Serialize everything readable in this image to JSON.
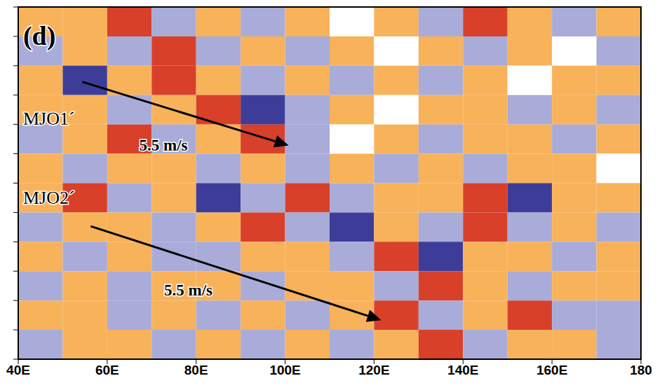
{
  "chart_data": {
    "type": "heatmap",
    "tick_labels": "x",
    "xlim": [
      40,
      180
    ],
    "xticks": [
      {
        "value": 40,
        "label": "40E"
      },
      {
        "value": 60,
        "label": "60E"
      },
      {
        "value": 80,
        "label": "80E"
      },
      {
        "value": 100,
        "label": "100E"
      },
      {
        "value": 120,
        "label": "120E"
      },
      {
        "value": 140,
        "label": "140E"
      },
      {
        "value": 160,
        "label": "160E"
      },
      180
    ],
    "ylim": [
      0,
      12
    ],
    "yticks": [
      0,
      1,
      2,
      3,
      4,
      5,
      6,
      7,
      8,
      9,
      10,
      11,
      12
    ],
    "x_edges": [
      40,
      50,
      60,
      70,
      80,
      90,
      100,
      110,
      120,
      130,
      140,
      150,
      160,
      170,
      180
    ],
    "y_edges": [
      12,
      11,
      10,
      9,
      8,
      7,
      6,
      5,
      4,
      3,
      2,
      1,
      0
    ],
    "levels": [
      -2,
      -1,
      0,
      1,
      2
    ],
    "colors": [
      "#3d3d99",
      "#a9acd9",
      "#ffffff",
      "#f8b25a",
      "#d8402a"
    ],
    "cells": [
      [
        1,
        1,
        2,
        -1,
        1,
        -1,
        1,
        0,
        1,
        -1,
        2,
        1,
        -1,
        1
      ],
      [
        -1,
        1,
        -1,
        2,
        -1,
        1,
        -1,
        1,
        0,
        1,
        -1,
        1,
        0,
        -1
      ],
      [
        1,
        -2,
        1,
        2,
        1,
        -1,
        1,
        -1,
        1,
        -1,
        1,
        0,
        1,
        1
      ],
      [
        1,
        1,
        -1,
        1,
        2,
        -2,
        -1,
        1,
        0,
        1,
        1,
        -1,
        1,
        -1
      ],
      [
        -1,
        1,
        2,
        -1,
        1,
        2,
        -1,
        0,
        1,
        -1,
        1,
        1,
        -1,
        1
      ],
      [
        1,
        -1,
        1,
        1,
        -1,
        1,
        -1,
        1,
        -1,
        1,
        -1,
        1,
        1,
        0
      ],
      [
        1,
        2,
        -1,
        1,
        -2,
        -1,
        2,
        -1,
        1,
        1,
        2,
        -2,
        1,
        1
      ],
      [
        -1,
        1,
        1,
        -1,
        1,
        2,
        -1,
        -2,
        1,
        -1,
        2,
        -1,
        1,
        -1
      ],
      [
        1,
        -1,
        1,
        -1,
        -1,
        1,
        1,
        -1,
        2,
        -2,
        1,
        1,
        -1,
        1
      ],
      [
        -1,
        1,
        -1,
        1,
        1,
        -1,
        1,
        1,
        -1,
        2,
        1,
        -1,
        1,
        1
      ],
      [
        1,
        1,
        -1,
        1,
        -1,
        1,
        -1,
        1,
        2,
        -1,
        1,
        2,
        -1,
        -1
      ],
      [
        -1,
        1,
        1,
        -1,
        1,
        -1,
        1,
        -1,
        1,
        2,
        -1,
        1,
        1,
        -1
      ]
    ],
    "annotations": [
      {
        "text": "(d)",
        "x": 41.1,
        "y": 10.7
      },
      {
        "text": "MJO1´",
        "x": 41.1,
        "y": 8.0
      },
      {
        "text": "MJO2´",
        "x": 41.1,
        "y": 5.3
      },
      {
        "text": "5.5 m/s",
        "x": 67.2,
        "y": 7.1
      },
      {
        "text": "5.5 m/s",
        "x": 72.8,
        "y": 2.17
      }
    ],
    "arrows": [
      {
        "x": [
          54.4,
          100.8
        ],
        "y": [
          9.45,
          7.28
        ]
      },
      {
        "x": [
          56.3,
          121.6
        ],
        "y": [
          4.53,
          1.33
        ]
      }
    ]
  }
}
